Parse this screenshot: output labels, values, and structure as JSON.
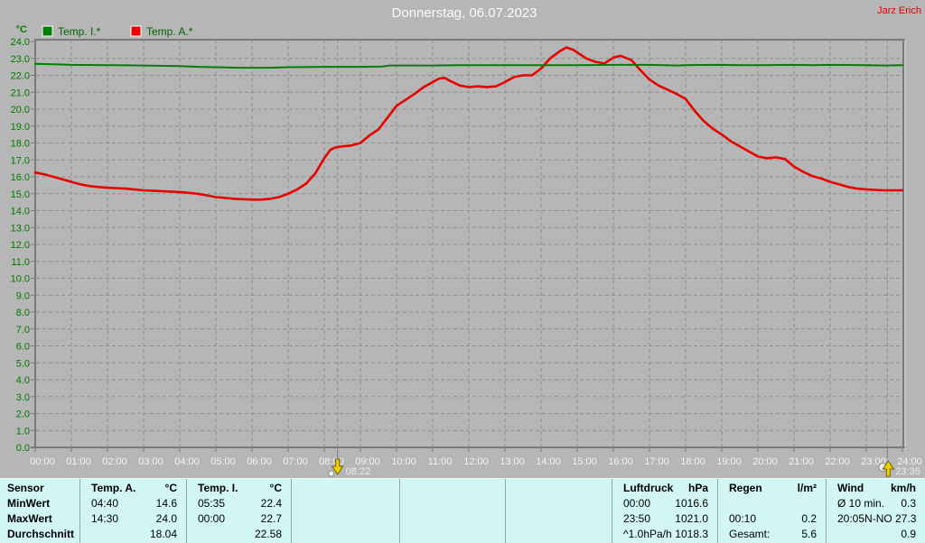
{
  "header": {
    "title": "Donnerstag, 06.07.2023",
    "watermark": "Jarz Erich"
  },
  "chart_data": {
    "type": "line",
    "title": "Donnerstag, 06.07.2023",
    "xlabel": "",
    "ylabel": "°C",
    "ylim": [
      0.0,
      24.0
    ],
    "ytick_step": 1.0,
    "xlim_hours": [
      0,
      24
    ],
    "grid": true,
    "legend_position": "top-left",
    "xtick_labels": [
      "00:00",
      "01:00",
      "02:00",
      "03:00",
      "04:00",
      "05:00",
      "06:00",
      "07:00",
      "08:00",
      "09:00",
      "10:00",
      "11:00",
      "12:00",
      "13:00",
      "14:00",
      "15:00",
      "16:00",
      "17:00",
      "18:00",
      "19:00",
      "20:00",
      "21:00",
      "22:00",
      "23:00",
      "24:00"
    ],
    "series": [
      {
        "name": "Temp. I.*",
        "color": "#008000",
        "points": [
          [
            0,
            22.68
          ],
          [
            0.5,
            22.65
          ],
          [
            1,
            22.62
          ],
          [
            2,
            22.6
          ],
          [
            3,
            22.58
          ],
          [
            4,
            22.55
          ],
          [
            4.5,
            22.5
          ],
          [
            5,
            22.48
          ],
          [
            5.6,
            22.45
          ],
          [
            6.5,
            22.45
          ],
          [
            7,
            22.48
          ],
          [
            8,
            22.5
          ],
          [
            9,
            22.5
          ],
          [
            9.6,
            22.52
          ],
          [
            9.8,
            22.58
          ],
          [
            11,
            22.58
          ],
          [
            12,
            22.6
          ],
          [
            13,
            22.6
          ],
          [
            14,
            22.6
          ],
          [
            15,
            22.6
          ],
          [
            16,
            22.62
          ],
          [
            17,
            22.62
          ],
          [
            17.8,
            22.58
          ],
          [
            18,
            22.6
          ],
          [
            19,
            22.62
          ],
          [
            19.5,
            22.6
          ],
          [
            20,
            22.6
          ],
          [
            21,
            22.62
          ],
          [
            21.5,
            22.6
          ],
          [
            22,
            22.62
          ],
          [
            23,
            22.6
          ],
          [
            23.5,
            22.58
          ],
          [
            24,
            22.6
          ]
        ]
      },
      {
        "name": "Temp. A.*",
        "color": "#e60000",
        "points": [
          [
            0,
            16.25
          ],
          [
            0.25,
            16.15
          ],
          [
            0.5,
            16.0
          ],
          [
            0.75,
            15.85
          ],
          [
            1,
            15.7
          ],
          [
            1.25,
            15.55
          ],
          [
            1.5,
            15.45
          ],
          [
            1.75,
            15.4
          ],
          [
            2,
            15.35
          ],
          [
            2.5,
            15.3
          ],
          [
            2.75,
            15.25
          ],
          [
            3,
            15.2
          ],
          [
            3.5,
            15.15
          ],
          [
            4,
            15.1
          ],
          [
            4.25,
            15.05
          ],
          [
            4.5,
            15.0
          ],
          [
            4.75,
            14.9
          ],
          [
            5,
            14.8
          ],
          [
            5.25,
            14.75
          ],
          [
            5.5,
            14.7
          ],
          [
            6,
            14.65
          ],
          [
            6.25,
            14.65
          ],
          [
            6.5,
            14.7
          ],
          [
            6.75,
            14.8
          ],
          [
            7,
            15.0
          ],
          [
            7.25,
            15.25
          ],
          [
            7.5,
            15.6
          ],
          [
            7.75,
            16.2
          ],
          [
            8,
            17.1
          ],
          [
            8.17,
            17.6
          ],
          [
            8.33,
            17.75
          ],
          [
            8.5,
            17.8
          ],
          [
            8.75,
            17.85
          ],
          [
            9,
            18.0
          ],
          [
            9.25,
            18.45
          ],
          [
            9.5,
            18.8
          ],
          [
            9.75,
            19.5
          ],
          [
            10,
            20.2
          ],
          [
            10.25,
            20.55
          ],
          [
            10.5,
            20.9
          ],
          [
            10.75,
            21.3
          ],
          [
            11,
            21.6
          ],
          [
            11.17,
            21.8
          ],
          [
            11.33,
            21.85
          ],
          [
            11.5,
            21.65
          ],
          [
            11.75,
            21.4
          ],
          [
            12,
            21.3
          ],
          [
            12.25,
            21.35
          ],
          [
            12.5,
            21.3
          ],
          [
            12.75,
            21.35
          ],
          [
            13,
            21.6
          ],
          [
            13.25,
            21.9
          ],
          [
            13.5,
            22.0
          ],
          [
            13.75,
            22.0
          ],
          [
            14,
            22.4
          ],
          [
            14.25,
            23.0
          ],
          [
            14.5,
            23.4
          ],
          [
            14.7,
            23.65
          ],
          [
            14.9,
            23.5
          ],
          [
            15,
            23.35
          ],
          [
            15.25,
            23.0
          ],
          [
            15.5,
            22.8
          ],
          [
            15.75,
            22.7
          ],
          [
            16,
            23.05
          ],
          [
            16.2,
            23.15
          ],
          [
            16.5,
            22.9
          ],
          [
            16.75,
            22.3
          ],
          [
            17,
            21.75
          ],
          [
            17.25,
            21.4
          ],
          [
            17.5,
            21.15
          ],
          [
            17.75,
            20.9
          ],
          [
            18,
            20.6
          ],
          [
            18.25,
            19.9
          ],
          [
            18.5,
            19.3
          ],
          [
            18.75,
            18.85
          ],
          [
            19,
            18.5
          ],
          [
            19.25,
            18.1
          ],
          [
            19.5,
            17.8
          ],
          [
            19.75,
            17.5
          ],
          [
            20,
            17.2
          ],
          [
            20.25,
            17.1
          ],
          [
            20.5,
            17.15
          ],
          [
            20.75,
            17.05
          ],
          [
            21,
            16.6
          ],
          [
            21.25,
            16.3
          ],
          [
            21.5,
            16.05
          ],
          [
            21.75,
            15.9
          ],
          [
            22,
            15.7
          ],
          [
            22.25,
            15.55
          ],
          [
            22.5,
            15.4
          ],
          [
            22.75,
            15.3
          ],
          [
            23,
            15.25
          ],
          [
            23.5,
            15.2
          ],
          [
            24,
            15.2
          ]
        ]
      }
    ],
    "markers": [
      {
        "label": "08:22",
        "hour": 8.367,
        "icon": "down-arrow"
      },
      {
        "label": "23:35",
        "hour": 23.583,
        "icon": "up-arrow"
      }
    ]
  },
  "table": {
    "row_labels": [
      "Sensor",
      "MinWert",
      "MaxWert",
      "Durchschnitt"
    ],
    "columns": [
      {
        "name": "temp-a",
        "header": "Temp. A.",
        "unit": "°C",
        "rows": [
          [
            "04:40",
            "14.6"
          ],
          [
            "14:30",
            "24.0"
          ],
          [
            "",
            "18.04"
          ]
        ]
      },
      {
        "name": "temp-i",
        "header": "Temp. I.",
        "unit": "°C",
        "rows": [
          [
            "05:35",
            "22.4"
          ],
          [
            "00:00",
            "22.7"
          ],
          [
            "",
            "22.58"
          ]
        ]
      },
      {
        "name": "empty-1",
        "header": "",
        "unit": "",
        "rows": [
          [
            "",
            ""
          ],
          [
            "",
            ""
          ],
          [
            "",
            ""
          ]
        ]
      },
      {
        "name": "empty-2",
        "header": "",
        "unit": "",
        "rows": [
          [
            "",
            ""
          ],
          [
            "",
            ""
          ],
          [
            "",
            ""
          ]
        ]
      },
      {
        "name": "empty-3",
        "header": "",
        "unit": "",
        "rows": [
          [
            "",
            ""
          ],
          [
            "",
            ""
          ],
          [
            "",
            ""
          ]
        ]
      },
      {
        "name": "luftdruck",
        "header": "Luftdruck",
        "unit": "hPa",
        "rows": [
          [
            "00:00",
            "1016.6"
          ],
          [
            "23:50",
            "1021.0"
          ],
          [
            "^1.0hPa/h",
            "1018.3"
          ]
        ]
      },
      {
        "name": "regen",
        "header": "Regen",
        "unit": "l/m²",
        "rows": [
          [
            "",
            ""
          ],
          [
            "00:10",
            "0.2"
          ],
          [
            "Gesamt:",
            "5.6"
          ]
        ]
      },
      {
        "name": "wind",
        "header": "Wind",
        "unit": "km/h",
        "rows": [
          [
            "Ø 10 min.",
            "0.3"
          ],
          [
            "20:05",
            "N-NO 27.3"
          ],
          [
            "",
            "0.9"
          ]
        ]
      }
    ]
  },
  "colors": {
    "background": "#b6b6b6",
    "table_background": "#d2f6f3",
    "grid": "#8f8f8f",
    "frame": "#7a7a7a",
    "y_labels": "#007800",
    "x_labels": "#f2f2f2",
    "title": "#fafafa",
    "watermark": "#e00000",
    "legend_text": "#006400",
    "temp_i_line": "#008000",
    "temp_a_line": "#e60000"
  }
}
